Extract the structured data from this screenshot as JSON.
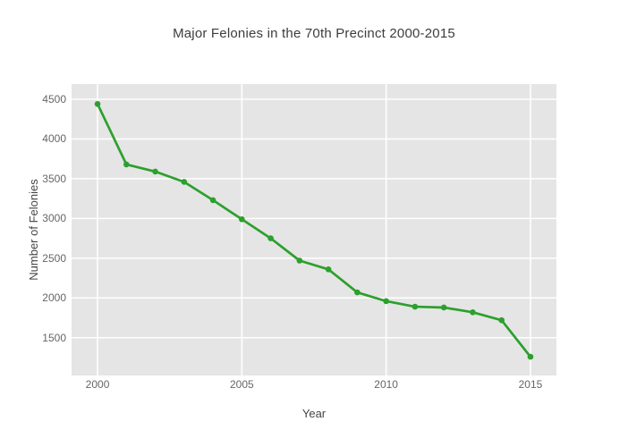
{
  "chart_data": {
    "type": "line",
    "title": "Major Felonies in the 70th Precinct 2000-2015",
    "xlabel": "Year",
    "ylabel": "Number of Felonies",
    "x": [
      2000,
      2001,
      2002,
      2003,
      2004,
      2005,
      2006,
      2007,
      2008,
      2009,
      2010,
      2011,
      2012,
      2013,
      2014,
      2015
    ],
    "series": [
      {
        "name": "Major Felonies",
        "values": [
          4440,
          3680,
          3590,
          3460,
          3230,
          2990,
          2750,
          2470,
          2360,
          2070,
          1960,
          1890,
          1880,
          1820,
          1720,
          1260
        ]
      }
    ],
    "xticks": [
      2000,
      2005,
      2010,
      2015
    ],
    "yticks": [
      1500,
      2000,
      2500,
      3000,
      3500,
      4000,
      4500
    ],
    "xlim": [
      1999.1,
      2015.9
    ],
    "ylim": [
      1025,
      4691
    ],
    "grid": true,
    "legend": false,
    "marker": "circle",
    "colors": {
      "line": "#2ca02c",
      "marker": "#2ca02c",
      "plot_background": "#e5e5e5",
      "gridline": "#ffffff",
      "tick_text": "#666666",
      "axis_title_text": "#444444",
      "title_text": "#3d3d3d"
    }
  }
}
